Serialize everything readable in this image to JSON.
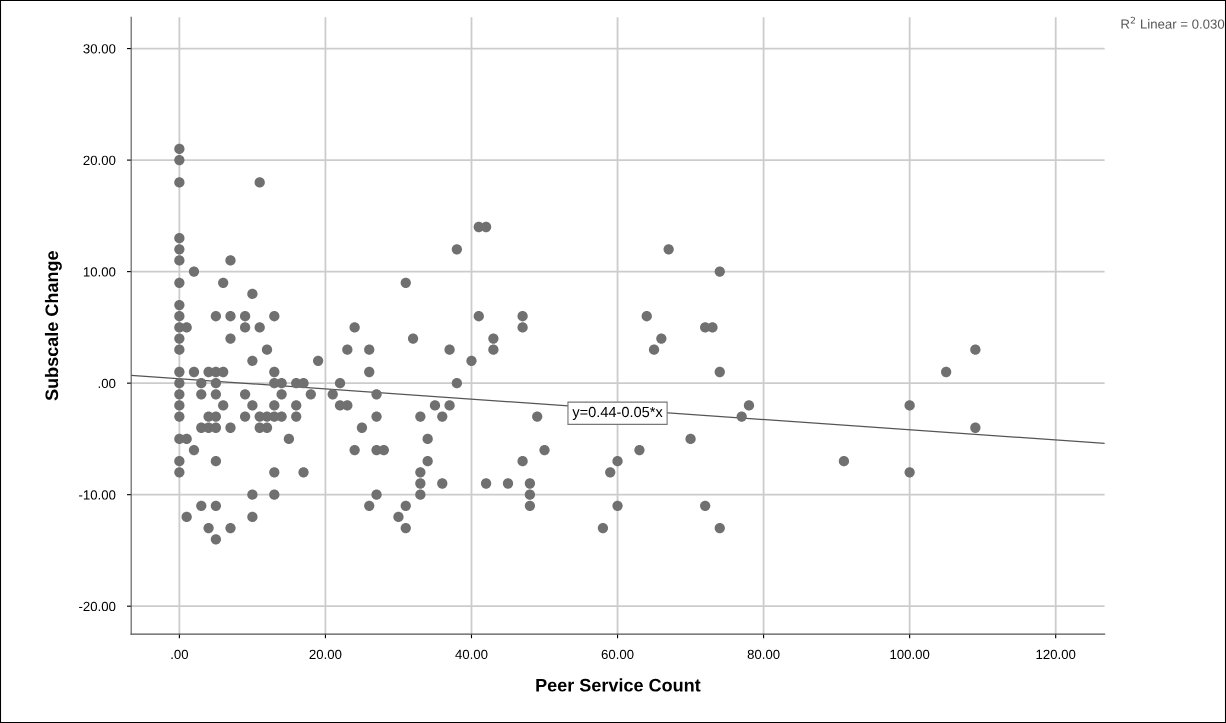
{
  "chart_data": {
    "type": "scatter",
    "xlabel": "Peer Service Count",
    "ylabel": "Subscale Change",
    "xlim": [
      -6.6,
      126.7
    ],
    "ylim": [
      -22.5,
      32.8
    ],
    "xticks": [
      {
        "value": 0,
        "label": ".00"
      },
      {
        "value": 20,
        "label": "20.00"
      },
      {
        "value": 40,
        "label": "40.00"
      },
      {
        "value": 60,
        "label": "60.00"
      },
      {
        "value": 80,
        "label": "80.00"
      },
      {
        "value": 100,
        "label": "100.00"
      },
      {
        "value": 120,
        "label": "120.00"
      }
    ],
    "yticks": [
      {
        "value": -20,
        "label": "-20.00"
      },
      {
        "value": -10,
        "label": "-10.00"
      },
      {
        "value": 0,
        "label": ".00"
      },
      {
        "value": 10,
        "label": "10.00"
      },
      {
        "value": 20,
        "label": "20.00"
      },
      {
        "value": 30,
        "label": "30.00"
      }
    ],
    "grid": true,
    "marker": "circle",
    "series": [
      {
        "color": "#707070",
        "x": [
          0,
          0,
          0,
          0,
          0,
          0,
          0,
          0,
          0,
          0,
          0,
          0,
          0,
          0,
          0,
          0,
          0,
          0,
          0,
          0,
          1,
          1,
          1,
          2,
          2,
          2,
          3,
          3,
          3,
          3,
          4,
          4,
          4,
          4,
          5,
          5,
          5,
          5,
          5,
          5,
          5,
          5,
          5,
          6,
          6,
          6,
          7,
          7,
          7,
          7,
          7,
          9,
          9,
          9,
          9,
          10,
          10,
          10,
          10,
          10,
          11,
          11,
          11,
          11,
          12,
          12,
          12,
          13,
          13,
          13,
          13,
          13,
          13,
          13,
          14,
          14,
          14,
          15,
          16,
          16,
          16,
          17,
          17,
          18,
          19,
          22,
          21,
          22,
          23,
          24,
          23,
          26,
          26,
          27,
          27,
          25,
          24,
          27,
          28,
          27,
          26,
          31,
          32,
          31,
          30,
          31,
          33,
          34,
          34,
          33,
          33,
          33,
          35,
          36,
          37,
          36,
          37,
          38,
          38,
          40,
          41,
          42,
          41,
          43,
          43,
          42,
          45,
          47,
          47,
          47,
          48,
          48,
          48,
          49,
          50,
          67,
          74,
          64,
          72,
          73,
          66,
          65,
          74,
          78,
          77,
          70,
          63,
          60,
          59,
          60,
          58,
          72,
          74,
          109,
          105,
          100,
          109,
          91,
          100
        ],
        "values": [
          21,
          20,
          18,
          13,
          12,
          11,
          9,
          7,
          6,
          5,
          4,
          3,
          1,
          0,
          -1,
          -2,
          -3,
          -5,
          -7,
          -8,
          5,
          -5,
          -12,
          10,
          1,
          -6,
          0,
          -1,
          -4,
          -11,
          1,
          -3,
          -4,
          -13,
          6,
          1,
          0,
          -1,
          -3,
          -4,
          -7,
          -11,
          -14,
          9,
          1,
          -2,
          11,
          6,
          4,
          -4,
          -13,
          6,
          5,
          -1,
          -3,
          8,
          2,
          -2,
          -10,
          -12,
          18,
          5,
          -3,
          -4,
          3,
          -3,
          -4,
          6,
          1,
          0,
          -2,
          -3,
          -8,
          -10,
          0,
          -1,
          -3,
          -5,
          0,
          -2,
          -3,
          0,
          -8,
          -1,
          2,
          0,
          -1,
          -2,
          -2,
          5,
          3,
          3,
          1,
          -1,
          -3,
          -4,
          -6,
          -6,
          -6,
          -10,
          -11,
          9,
          4,
          -11,
          -12,
          -13,
          -3,
          -5,
          -7,
          -8,
          -9,
          -10,
          -2,
          -3,
          -2,
          -9,
          3,
          12,
          0,
          2,
          14,
          14,
          6,
          4,
          3,
          -9,
          -9,
          6,
          5,
          -7,
          -9,
          -10,
          -11,
          -3,
          -6,
          12,
          10,
          6,
          5,
          5,
          4,
          3,
          1,
          -2,
          -3,
          -5,
          -6,
          -7,
          -8,
          -11,
          -13,
          -11,
          -13,
          3,
          1,
          -2,
          -4,
          -7,
          -8
        ]
      },
      {
        "type": "line",
        "color": "#555555",
        "marker": "none",
        "x": [
          -6.6,
          126.7
        ],
        "values": [
          0.7,
          -5.4
        ]
      }
    ],
    "annotations": [
      {
        "text": "y=0.44-0.05*x",
        "x": 60,
        "y": -2.7
      },
      "R$^{2}$ Linear = 0.030"
    ]
  }
}
